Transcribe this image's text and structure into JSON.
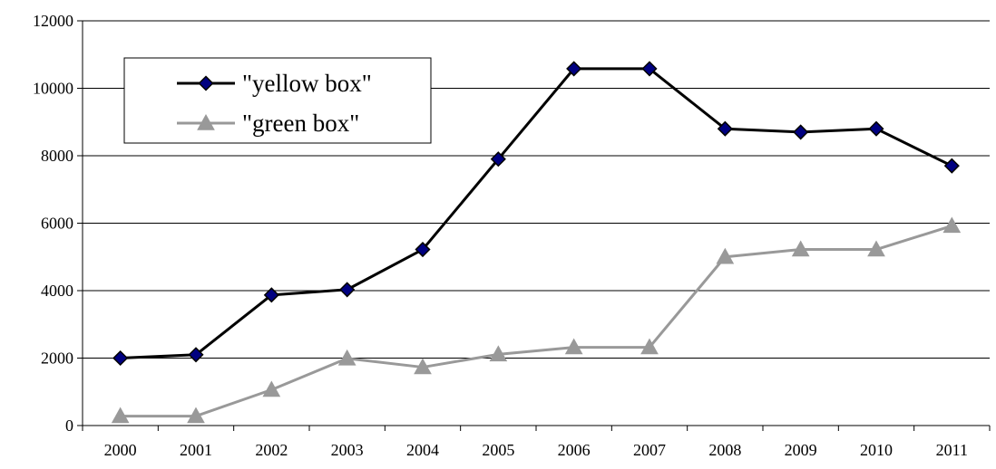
{
  "chart_data": {
    "type": "line",
    "categories": [
      "2000",
      "2001",
      "2002",
      "2003",
      "2004",
      "2005",
      "2006",
      "2007",
      "2008",
      "2009",
      "2010",
      "2011"
    ],
    "series": [
      {
        "name": "\"yellow box\"",
        "values": [
          2000,
          2100,
          3870,
          4030,
          5220,
          7900,
          10580,
          10580,
          8800,
          8700,
          8800,
          7700
        ],
        "color": "#000000",
        "marker": "diamond",
        "marker_fill": "#000080"
      },
      {
        "name": "\"green box\"",
        "values": [
          280,
          280,
          1060,
          1990,
          1730,
          2110,
          2320,
          2320,
          5000,
          5220,
          5220,
          5920
        ],
        "color": "#999999",
        "marker": "triangle",
        "marker_fill": "#999999"
      }
    ],
    "ylim": [
      0,
      12000
    ],
    "y_ticks": [
      0,
      2000,
      4000,
      6000,
      8000,
      10000,
      12000
    ],
    "title": "",
    "xlabel": "",
    "ylabel": "",
    "grid": "horizontal",
    "legend_position": "top-left"
  }
}
